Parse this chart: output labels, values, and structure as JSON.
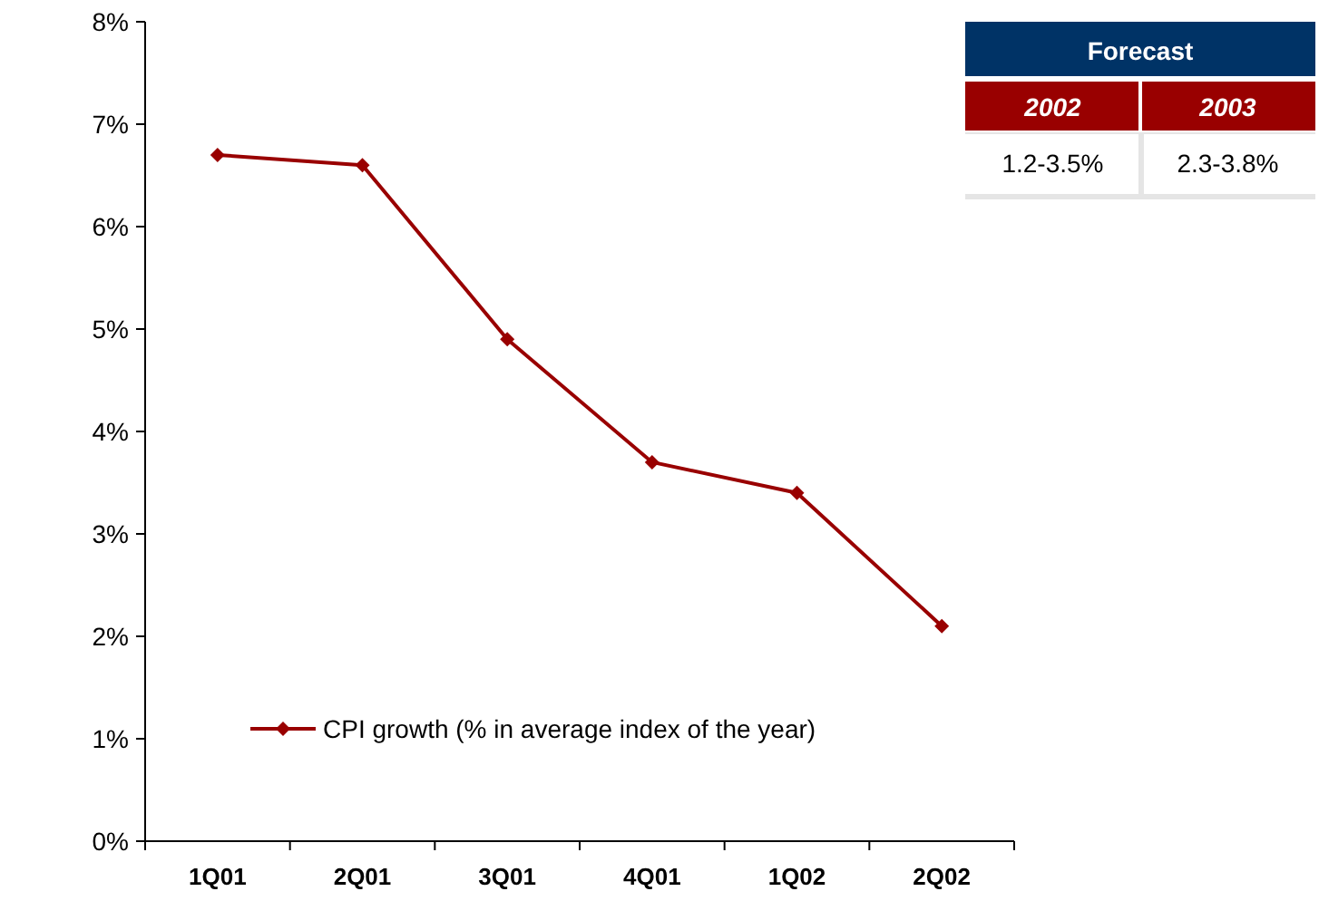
{
  "chart_data": {
    "type": "line",
    "categories": [
      "1Q01",
      "2Q01",
      "3Q01",
      "4Q01",
      "1Q02",
      "2Q02"
    ],
    "series": [
      {
        "name": "CPI growth (% in average index of the year)",
        "color": "#990000",
        "values": [
          6.7,
          6.6,
          4.9,
          3.7,
          3.4,
          2.1
        ]
      }
    ],
    "ylim": [
      0,
      8
    ],
    "yticks": [
      {
        "value": 0,
        "label": "0%"
      },
      {
        "value": 1,
        "label": "1%"
      },
      {
        "value": 2,
        "label": "2%"
      },
      {
        "value": 3,
        "label": "3%"
      },
      {
        "value": 4,
        "label": "4%"
      },
      {
        "value": 5,
        "label": "5%"
      },
      {
        "value": 6,
        "label": "6%"
      },
      {
        "value": 7,
        "label": "7%"
      },
      {
        "value": 8,
        "label": "8%"
      }
    ],
    "marker": "diamond",
    "legend": "bottom left",
    "grid": false,
    "annotations": [
      "Forecast",
      "2002",
      "2003",
      "1.2-3.5%",
      "2.3-3.8%"
    ]
  }
}
